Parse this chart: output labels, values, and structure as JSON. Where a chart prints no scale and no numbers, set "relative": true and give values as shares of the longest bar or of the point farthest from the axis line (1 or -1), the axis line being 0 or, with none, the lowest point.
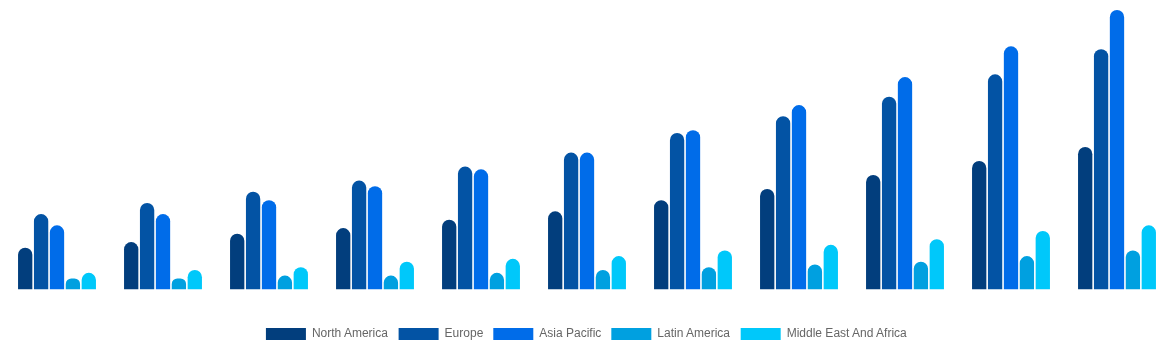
{
  "chart_data": {
    "type": "bar",
    "relative": true,
    "legend": "bottom",
    "grid": false,
    "categories": [
      null,
      null,
      null,
      null,
      null,
      null,
      null,
      null,
      null,
      null,
      null
    ],
    "series": [
      {
        "name": "North America",
        "color": "#023e7d",
        "values": [
          0.15,
          0.17,
          0.2,
          0.22,
          0.25,
          0.28,
          0.32,
          0.36,
          0.41,
          0.46,
          0.51
        ]
      },
      {
        "name": "Europe",
        "color": "#0353a4",
        "values": [
          0.27,
          0.31,
          0.35,
          0.39,
          0.44,
          0.49,
          0.56,
          0.62,
          0.69,
          0.77,
          0.86
        ]
      },
      {
        "name": "Asia Pacific",
        "color": "#006ce9",
        "values": [
          0.23,
          0.27,
          0.32,
          0.37,
          0.43,
          0.49,
          0.57,
          0.66,
          0.76,
          0.87,
          1
        ]
      },
      {
        "name": "Latin America",
        "color": "#00a0e0",
        "values": [
          0.04,
          0.04,
          0.05,
          0.05,
          0.06,
          0.07,
          0.08,
          0.09,
          0.1,
          0.12,
          0.14
        ]
      },
      {
        "name": "Middle East And Africa",
        "color": "#00c8fa",
        "values": [
          0.06,
          0.07,
          0.08,
          0.1,
          0.11,
          0.12,
          0.14,
          0.16,
          0.18,
          0.21,
          0.23
        ]
      }
    ]
  }
}
